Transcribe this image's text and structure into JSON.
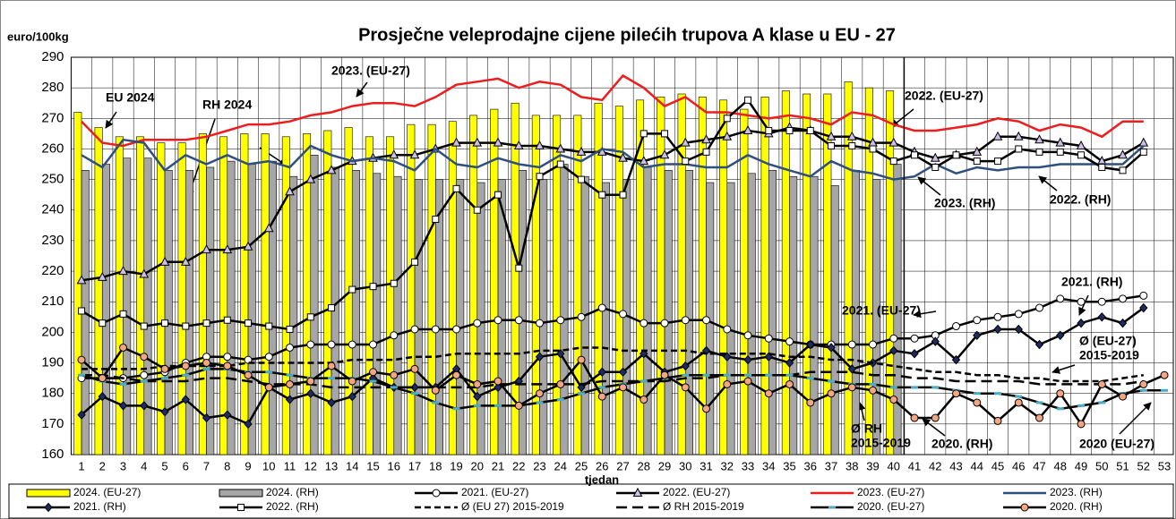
{
  "chart_data": {
    "type": "bar_line",
    "title": "Prosječne veleprodajne cijene pilećih trupova A klase u EU - 27",
    "y_label": "euro/100kg",
    "x_label": "tjedan",
    "categories": [
      "1",
      "2",
      "3",
      "4",
      "5",
      "6",
      "7",
      "8",
      "9",
      "10",
      "11",
      "12",
      "13",
      "14",
      "15",
      "16",
      "17",
      "18",
      "19",
      "20",
      "21",
      "22",
      "23",
      "24",
      "25",
      "26",
      "27",
      "28",
      "29",
      "30",
      "31",
      "32",
      "33",
      "34",
      "35",
      "36",
      "37",
      "38",
      "39",
      "40",
      "41",
      "42",
      "43",
      "44",
      "45",
      "46",
      "47",
      "48",
      "49",
      "50",
      "51",
      "52",
      "53"
    ],
    "ylim": [
      160,
      290
    ],
    "yticks": [
      160,
      170,
      180,
      190,
      200,
      210,
      220,
      230,
      240,
      250,
      260,
      270,
      280,
      290
    ],
    "series": [
      {
        "name": "2024. (EU-27)",
        "kind": "bar",
        "color": "#ffff00",
        "values": [
          272,
          267,
          264,
          264,
          262,
          262,
          265,
          264,
          265,
          265,
          264,
          265,
          266,
          267,
          264,
          264,
          268,
          268,
          269,
          271,
          273,
          275,
          271,
          271,
          271,
          275,
          274,
          276,
          277,
          278,
          277,
          276,
          273,
          277,
          279,
          278,
          278,
          282,
          280,
          279,
          null,
          null,
          null,
          null,
          null,
          null,
          null,
          null,
          null,
          null,
          null,
          null,
          null
        ]
      },
      {
        "name": "2024. (RH)",
        "kind": "bar",
        "color": "#a6a6a6",
        "values": [
          253,
          255,
          257,
          257,
          253,
          253,
          254,
          256,
          255,
          256,
          251,
          258,
          254,
          253,
          252,
          251,
          250,
          250,
          250,
          249,
          250,
          253,
          250,
          255,
          251,
          249,
          250,
          254,
          253,
          253,
          249,
          249,
          252,
          253,
          251,
          251,
          248,
          253,
          250,
          255,
          null,
          null,
          null,
          null,
          null,
          null,
          null,
          null,
          null,
          null,
          null,
          null,
          null
        ]
      },
      {
        "name": "2021. (EU-27)",
        "kind": "line",
        "color": "#000000",
        "marker": "circle",
        "marker_color": "#ffffff",
        "values": [
          185,
          185,
          185,
          186,
          187,
          190,
          192,
          192,
          191,
          192,
          195,
          196,
          196,
          196,
          196,
          199,
          201,
          201,
          201,
          203,
          204,
          204,
          203,
          204,
          205,
          208,
          206,
          203,
          203,
          204,
          204,
          201,
          199,
          198,
          197,
          196,
          196,
          196,
          196,
          198,
          198,
          199,
          202,
          204,
          205,
          206,
          208,
          211,
          210,
          210,
          211,
          212,
          null
        ]
      },
      {
        "name": "2022. (EU-27)",
        "kind": "line",
        "color": "#000000",
        "marker": "triangle",
        "marker_color": "#ccc0e6",
        "values": [
          217,
          218,
          220,
          219,
          223,
          223,
          227,
          227,
          228,
          234,
          246,
          250,
          253,
          256,
          257,
          258,
          258,
          260,
          262,
          262,
          262,
          261,
          261,
          260,
          259,
          259,
          257,
          256,
          258,
          262,
          263,
          264,
          266,
          265,
          267,
          266,
          264,
          264,
          262,
          262,
          259,
          257,
          258,
          259,
          264,
          264,
          263,
          262,
          261,
          256,
          258,
          262,
          null
        ]
      },
      {
        "name": "2023. (EU-27)",
        "kind": "line",
        "color": "#ee1c1c",
        "values": [
          269,
          262,
          261,
          263,
          263,
          263,
          264,
          266,
          268,
          268,
          269,
          271,
          272,
          274,
          275,
          275,
          274,
          277,
          281,
          282,
          283,
          280,
          282,
          281,
          277,
          276,
          284,
          280,
          274,
          277,
          272,
          272,
          271,
          270,
          271,
          270,
          268,
          272,
          271,
          268,
          266,
          266,
          267,
          268,
          270,
          269,
          266,
          268,
          267,
          264,
          269,
          269,
          null
        ]
      },
      {
        "name": "2023. (RH)",
        "kind": "line",
        "color": "#2f4f7f",
        "values": [
          258,
          254,
          263,
          262,
          253,
          258,
          255,
          258,
          255,
          256,
          254,
          261,
          258,
          256,
          257,
          256,
          253,
          260,
          255,
          254,
          257,
          255,
          254,
          258,
          256,
          260,
          259,
          254,
          255,
          255,
          254,
          254,
          258,
          255,
          253,
          251,
          256,
          253,
          252,
          250,
          251,
          255,
          252,
          254,
          253,
          254,
          254,
          255,
          255,
          255,
          255,
          261,
          null
        ]
      },
      {
        "name": "2021. (RH)",
        "kind": "line",
        "color": "#000000",
        "marker": "diamond",
        "marker_color": "#1f2a60",
        "values": [
          173,
          179,
          176,
          176,
          174,
          178,
          172,
          173,
          170,
          182,
          178,
          180,
          177,
          179,
          185,
          182,
          182,
          182,
          188,
          179,
          182,
          184,
          192,
          193,
          182,
          187,
          187,
          193,
          187,
          189,
          194,
          192,
          191,
          192,
          190,
          196,
          195,
          188,
          190,
          194,
          193,
          197,
          191,
          199,
          201,
          201,
          196,
          199,
          203,
          205,
          203,
          208,
          null
        ]
      },
      {
        "name": "2022. (RH)",
        "kind": "line",
        "color": "#000000",
        "marker": "square",
        "marker_color": "#ffffff",
        "values": [
          207,
          203,
          206,
          202,
          203,
          202,
          203,
          204,
          203,
          202,
          201,
          205,
          208,
          214,
          215,
          216,
          223,
          237,
          247,
          240,
          245,
          221,
          251,
          255,
          250,
          245,
          245,
          265,
          265,
          256,
          259,
          270,
          276,
          266,
          266,
          266,
          261,
          261,
          260,
          256,
          258,
          254,
          258,
          256,
          256,
          260,
          259,
          259,
          258,
          254,
          253,
          259,
          null
        ]
      },
      {
        "name": "Ø (EU 27) 2015-2019",
        "kind": "line",
        "color": "#000000",
        "dash": "7 4",
        "values": [
          188,
          188,
          188,
          188,
          189,
          189,
          189,
          189,
          190,
          190,
          190,
          190,
          190,
          191,
          191,
          191,
          192,
          192,
          193,
          193,
          193,
          193,
          194,
          194,
          195,
          195,
          194,
          194,
          194,
          194,
          193,
          193,
          193,
          193,
          192,
          192,
          191,
          191,
          190,
          189,
          188,
          187,
          187,
          186,
          186,
          185,
          185,
          184,
          184,
          184,
          185,
          186,
          null
        ]
      },
      {
        "name": "Ø RH 2015-2019",
        "kind": "line",
        "color": "#000000",
        "dash": "12 6",
        "values": [
          186,
          186,
          185,
          184,
          184,
          184,
          185,
          185,
          184,
          183,
          183,
          183,
          182,
          182,
          182,
          182,
          182,
          182,
          182,
          182,
          183,
          183,
          183,
          183,
          183,
          184,
          184,
          184,
          184,
          185,
          185,
          186,
          186,
          186,
          186,
          187,
          187,
          187,
          186,
          186,
          185,
          185,
          184,
          184,
          184,
          184,
          183,
          183,
          183,
          183,
          183,
          184,
          null
        ]
      },
      {
        "name": "2020. (EU-27)",
        "kind": "line",
        "color": "#000000",
        "marker": "dash",
        "marker_color": "#4bacc6",
        "values": [
          186,
          184,
          183,
          184,
          185,
          186,
          188,
          188,
          187,
          187,
          186,
          185,
          185,
          185,
          184,
          182,
          180,
          177,
          175,
          176,
          176,
          176,
          177,
          178,
          180,
          182,
          183,
          184,
          185,
          186,
          186,
          186,
          186,
          186,
          186,
          185,
          184,
          183,
          183,
          182,
          182,
          182,
          181,
          180,
          180,
          179,
          177,
          175,
          176,
          177,
          180,
          181,
          181
        ]
      },
      {
        "name": "2020. (RH)",
        "kind": "line",
        "color": "#000000",
        "marker": "circle",
        "marker_color": "#f4a582",
        "values": [
          191,
          185,
          195,
          192,
          188,
          189,
          190,
          189,
          186,
          182,
          183,
          184,
          189,
          184,
          187,
          186,
          188,
          181,
          186,
          183,
          184,
          176,
          180,
          183,
          191,
          179,
          182,
          178,
          186,
          182,
          175,
          183,
          184,
          180,
          183,
          177,
          180,
          182,
          181,
          178,
          172,
          172,
          180,
          177,
          171,
          177,
          172,
          180,
          170,
          183,
          179,
          183,
          186
        ]
      }
    ],
    "annotations": [
      [
        "EU 2024"
      ],
      [
        "RH 2024"
      ],
      [
        "2023. (EU-27)"
      ],
      [
        "2022. (EU-27)"
      ],
      [
        "2023. (RH)"
      ],
      [
        "2022. (RH)"
      ],
      [
        "2021. (RH)"
      ],
      [
        "2021. (EU-27)"
      ],
      [
        "Ø (EU-27)",
        "2015-2019"
      ],
      [
        "Ø RH",
        "2015-2019"
      ],
      [
        "2020. (RH)"
      ],
      [
        "2020 (EU-27)"
      ]
    ]
  }
}
